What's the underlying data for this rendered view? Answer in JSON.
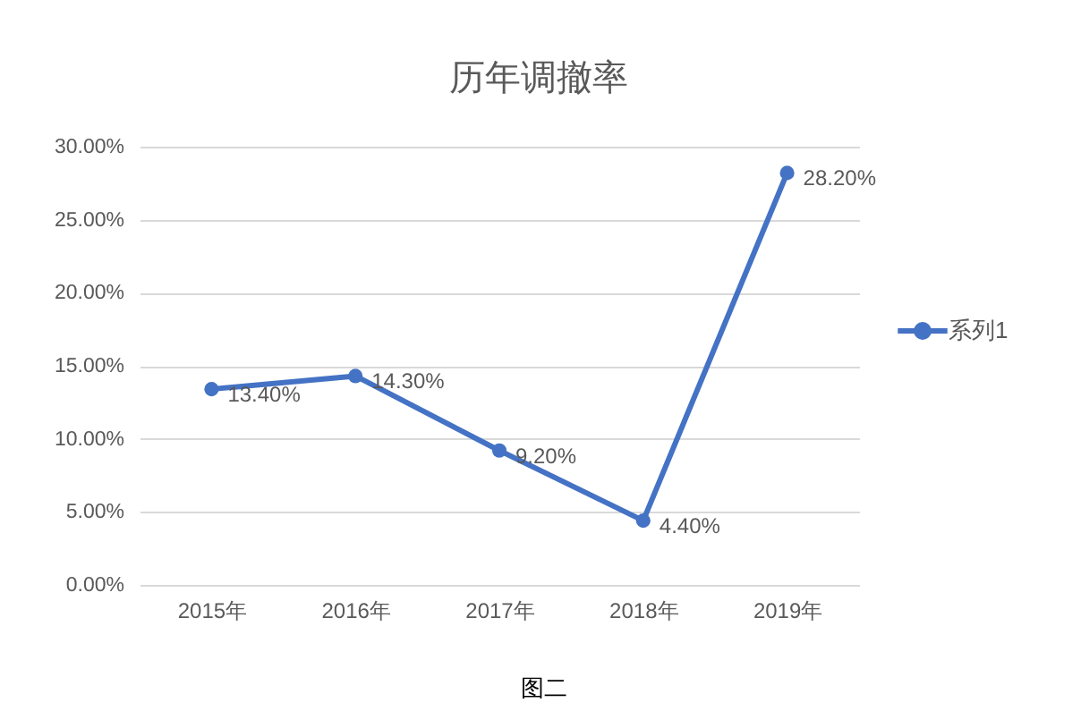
{
  "chart_data": {
    "type": "line",
    "title": "历年调撤率",
    "categories": [
      "2015年",
      "2016年",
      "2017年",
      "2018年",
      "2019年"
    ],
    "series": [
      {
        "name": "系列1",
        "color": "#4472c4",
        "values": [
          13.4,
          14.3,
          9.2,
          4.4,
          28.2
        ],
        "value_labels": [
          "13.40%",
          "14.30%",
          "9.20%",
          "4.40%",
          "28.20%"
        ]
      }
    ],
    "ylim": [
      0,
      30
    ],
    "yticks": [
      {
        "value": 0,
        "label": "0.00%"
      },
      {
        "value": 5,
        "label": "5.00%"
      },
      {
        "value": 10,
        "label": "10.00%"
      },
      {
        "value": 15,
        "label": "15.00%"
      },
      {
        "value": 20,
        "label": "20.00%"
      },
      {
        "value": 25,
        "label": "25.00%"
      },
      {
        "value": 30,
        "label": "30.00%"
      }
    ],
    "grid": "y",
    "legend": "right",
    "marker": "circle",
    "line_style": "solid",
    "annotations": [
      "图二"
    ]
  }
}
